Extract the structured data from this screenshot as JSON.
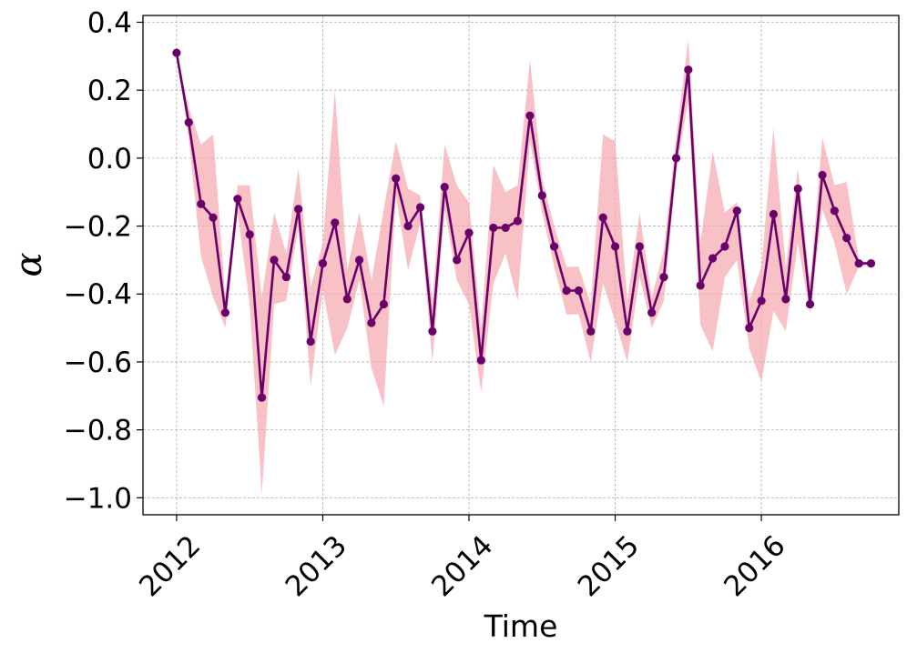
{
  "chart_data": {
    "type": "line",
    "xlabel": "Time",
    "ylabel": "α",
    "xlim": [
      2011.77,
      2016.94
    ],
    "ylim": [
      -1.05,
      0.42
    ],
    "x_ticks": [
      2012,
      2013,
      2014,
      2015,
      2016
    ],
    "x_tick_labels": [
      "2012",
      "2013",
      "2014",
      "2015",
      "2016"
    ],
    "y_ticks": [
      0.4,
      0.2,
      0.0,
      -0.2,
      -0.4,
      -0.6,
      -0.8,
      -1.0
    ],
    "y_tick_labels": [
      "0.4",
      "0.2",
      "0.0",
      "−0.2",
      "−0.4",
      "−0.6",
      "−0.8",
      "−1.0"
    ],
    "grid": true,
    "line_color": "#6a006a",
    "band_color": "#f4a6ae",
    "series": [
      {
        "x": [
          2012.0,
          2012.083,
          2012.167,
          2012.25,
          2012.333,
          2012.417,
          2012.5,
          2012.583,
          2012.667,
          2012.75,
          2012.833,
          2012.917,
          2013.0,
          2013.083,
          2013.167,
          2013.25,
          2013.333,
          2013.417,
          2013.5,
          2013.583,
          2013.667,
          2013.75,
          2013.833,
          2013.917,
          2014.0,
          2014.083,
          2014.167,
          2014.25,
          2014.333,
          2014.417,
          2014.5,
          2014.583,
          2014.667,
          2014.75,
          2014.833,
          2014.917,
          2015.0,
          2015.083,
          2015.167,
          2015.25,
          2015.333,
          2015.417,
          2015.5,
          2015.583,
          2015.667,
          2015.75,
          2015.833,
          2015.917,
          2016.0,
          2016.083,
          2016.167,
          2016.25,
          2016.333,
          2016.417,
          2016.5,
          2016.583,
          2016.667,
          2016.75
        ],
        "y": [
          0.31,
          0.105,
          -0.135,
          -0.175,
          -0.455,
          -0.12,
          -0.225,
          -0.705,
          -0.3,
          -0.35,
          -0.15,
          -0.54,
          -0.31,
          -0.19,
          -0.415,
          -0.3,
          -0.485,
          -0.43,
          -0.06,
          -0.2,
          -0.145,
          -0.51,
          -0.085,
          -0.3,
          -0.22,
          -0.595,
          -0.205,
          -0.205,
          -0.185,
          0.125,
          -0.11,
          -0.26,
          -0.39,
          -0.39,
          -0.51,
          -0.175,
          -0.26,
          -0.51,
          -0.26,
          -0.455,
          -0.35,
          0.0,
          0.26,
          -0.375,
          -0.295,
          -0.26,
          -0.155,
          -0.5,
          -0.42,
          -0.165,
          -0.415,
          -0.09,
          -0.43,
          -0.05,
          -0.155,
          -0.235,
          -0.31,
          -0.31
        ],
        "lower": [
          0.31,
          0.06,
          -0.29,
          -0.41,
          -0.5,
          -0.16,
          -0.43,
          -0.99,
          -0.43,
          -0.42,
          -0.2,
          -0.67,
          -0.39,
          -0.58,
          -0.5,
          -0.36,
          -0.62,
          -0.73,
          -0.11,
          -0.33,
          -0.19,
          -0.6,
          -0.15,
          -0.36,
          -0.43,
          -0.69,
          -0.37,
          -0.28,
          -0.42,
          0.05,
          -0.16,
          -0.32,
          -0.46,
          -0.46,
          -0.6,
          -0.37,
          -0.48,
          -0.6,
          -0.35,
          -0.5,
          -0.42,
          -0.04,
          0.17,
          -0.49,
          -0.57,
          -0.35,
          -0.3,
          -0.56,
          -0.66,
          -0.45,
          -0.51,
          -0.25,
          -0.46,
          -0.15,
          -0.25,
          -0.4,
          -0.32,
          -0.31
        ],
        "upper": [
          0.31,
          0.15,
          0.04,
          0.07,
          -0.41,
          -0.08,
          -0.08,
          -0.41,
          -0.16,
          -0.28,
          -0.03,
          -0.38,
          -0.25,
          0.2,
          -0.33,
          -0.16,
          -0.36,
          -0.15,
          0.05,
          -0.09,
          -0.11,
          -0.42,
          0.04,
          -0.08,
          -0.13,
          -0.5,
          -0.02,
          -0.1,
          -0.08,
          0.29,
          -0.06,
          -0.2,
          -0.32,
          -0.32,
          -0.43,
          0.07,
          0.05,
          -0.42,
          -0.16,
          -0.41,
          -0.27,
          0.06,
          0.35,
          -0.25,
          0.02,
          -0.16,
          -0.13,
          -0.42,
          -0.32,
          0.09,
          -0.32,
          -0.03,
          -0.37,
          0.06,
          -0.08,
          -0.07,
          -0.3,
          -0.31
        ]
      }
    ]
  }
}
